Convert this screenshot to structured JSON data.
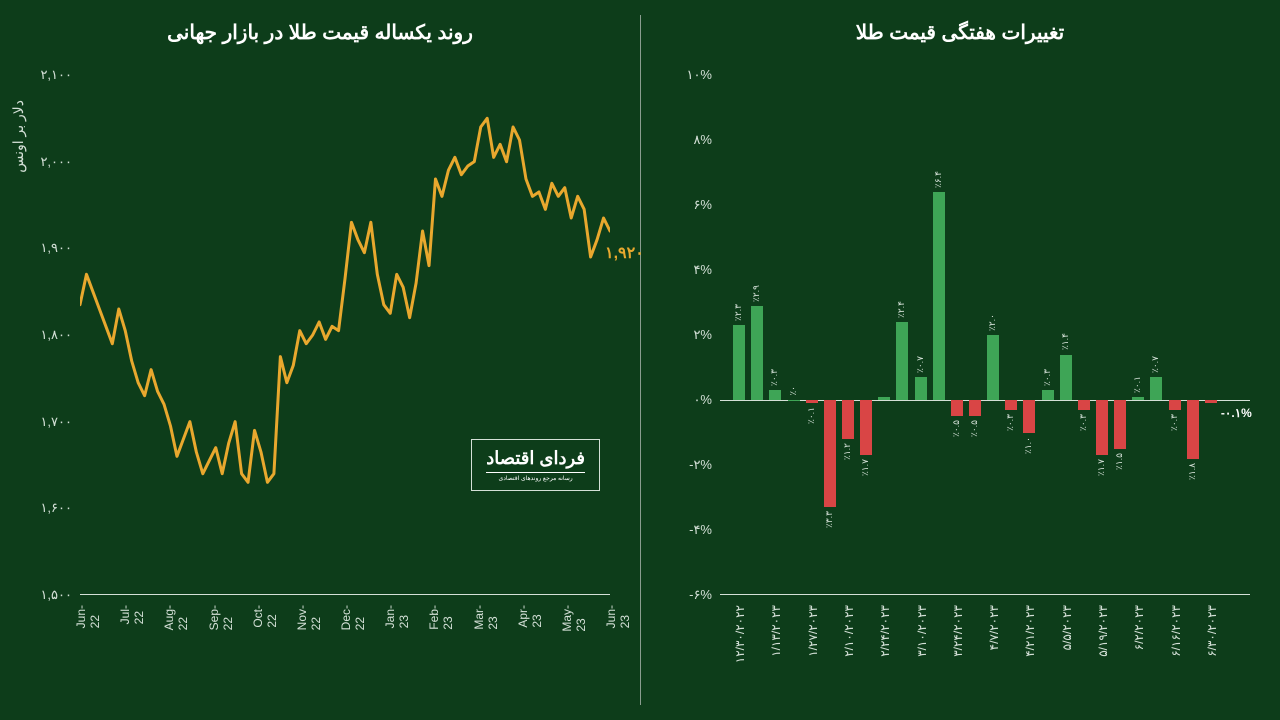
{
  "background_color": "#0d3d1a",
  "text_color": "#d4e0d7",
  "line_chart": {
    "title": "روند یکساله قیمت طلا در بازار جهانی",
    "y_axis_label": "دلار بر اونس",
    "ylim": [
      1500,
      2100
    ],
    "ytick_step": 100,
    "y_ticks": [
      "۱,۵۰۰",
      "۱,۶۰۰",
      "۱,۷۰۰",
      "۱,۸۰۰",
      "۱,۹۰۰",
      "۲,۰۰۰",
      "۲,۱۰۰"
    ],
    "x_labels": [
      "Jun-22",
      "Jul-22",
      "Aug-22",
      "Sep-22",
      "Oct-22",
      "Nov-22",
      "Dec-22",
      "Jan-23",
      "Feb-23",
      "Mar-23",
      "Apr-23",
      "May-23",
      "Jun-23"
    ],
    "line_color": "#e8a82e",
    "line_width": 3,
    "callout_value": "۱,۹۲۰",
    "data": [
      1835,
      1870,
      1850,
      1830,
      1810,
      1790,
      1830,
      1805,
      1770,
      1745,
      1730,
      1760,
      1735,
      1720,
      1695,
      1660,
      1680,
      1700,
      1665,
      1640,
      1655,
      1670,
      1640,
      1675,
      1700,
      1640,
      1630,
      1690,
      1665,
      1630,
      1640,
      1775,
      1745,
      1765,
      1805,
      1790,
      1800,
      1815,
      1795,
      1810,
      1805,
      1865,
      1930,
      1910,
      1895,
      1930,
      1870,
      1835,
      1825,
      1870,
      1855,
      1820,
      1860,
      1920,
      1880,
      1980,
      1960,
      1990,
      2005,
      1985,
      1995,
      2000,
      2040,
      2050,
      2005,
      2020,
      2000,
      2040,
      2025,
      1980,
      1960,
      1965,
      1945,
      1975,
      1960,
      1970,
      1935,
      1960,
      1945,
      1890,
      1910,
      1935,
      1920
    ],
    "logo_main": "فردای اقتصاد",
    "logo_sub": "رسانه مرجع روندهای اقتصادی"
  },
  "bar_chart": {
    "title": "تغییرات هفتگی قیمت طلا",
    "ylim": [
      -6,
      10
    ],
    "y_ticks": [
      "-۶%",
      "-۴%",
      "-۲%",
      "۰%",
      "۲%",
      "۴%",
      "۶%",
      "۸%",
      "۱۰%"
    ],
    "y_tick_vals": [
      -6,
      -4,
      -2,
      0,
      2,
      4,
      6,
      8,
      10
    ],
    "x_labels": [
      "۱۲/۳۰/۲۰۲۲",
      "۱/۱۳/۲۰۲۳",
      "۱/۲۷/۲۰۲۳",
      "۲/۱۰/۲۰۲۳",
      "۲/۲۴/۲۰۲۳",
      "۳/۱۰/۲۰۲۳",
      "۳/۲۴/۲۰۲۳",
      "۴/۷/۲۰۲۳",
      "۴/۲۱/۲۰۲۳",
      "۵/۵/۲۰۲۳",
      "۵/۱۹/۲۰۲۳",
      "۶/۲/۲۰۲۳",
      "۶/۱۶/۲۰۲۳",
      "۶/۳۰/۲۰۲۳"
    ],
    "pos_color": "#3ea556",
    "neg_color": "#d94545",
    "last_callout": "-۰.۱%",
    "bars": [
      {
        "v": 2.3,
        "l": "٪۲.۳"
      },
      {
        "v": 2.9,
        "l": "٪۲.۹"
      },
      {
        "v": 0.3,
        "l": "٪۰.۳"
      },
      {
        "v": 0.0,
        "l": "٪۰"
      },
      {
        "v": -0.1,
        "l": "٪۰.۱"
      },
      {
        "v": -3.3,
        "l": "٪۳.۳"
      },
      {
        "v": -1.2,
        "l": "٪۱.۲"
      },
      {
        "v": -1.7,
        "l": "٪۱.۷"
      },
      {
        "v": 0.1,
        "l": ""
      },
      {
        "v": 2.4,
        "l": "٪۲.۴"
      },
      {
        "v": 0.7,
        "l": "٪۰.۷"
      },
      {
        "v": 6.4,
        "l": "٪۶.۴"
      },
      {
        "v": -0.5,
        "l": "٪۰.۵"
      },
      {
        "v": -0.5,
        "l": "٪۰.۵"
      },
      {
        "v": 2.0,
        "l": "٪۲.۰"
      },
      {
        "v": -0.3,
        "l": "٪۰.۳"
      },
      {
        "v": -1.0,
        "l": "٪۱.۰"
      },
      {
        "v": 0.3,
        "l": "٪۰.۳"
      },
      {
        "v": 1.4,
        "l": "٪۱.۴"
      },
      {
        "v": -0.3,
        "l": "٪۰.۳"
      },
      {
        "v": -1.7,
        "l": "٪۱.۷"
      },
      {
        "v": -1.5,
        "l": "٪۱.۵"
      },
      {
        "v": 0.1,
        "l": "٪۰.۱"
      },
      {
        "v": 0.7,
        "l": "٪۰.۷"
      },
      {
        "v": -0.3,
        "l": "٪۰.۳"
      },
      {
        "v": -1.8,
        "l": "٪۱.۸"
      },
      {
        "v": -0.1,
        "l": ""
      }
    ]
  }
}
